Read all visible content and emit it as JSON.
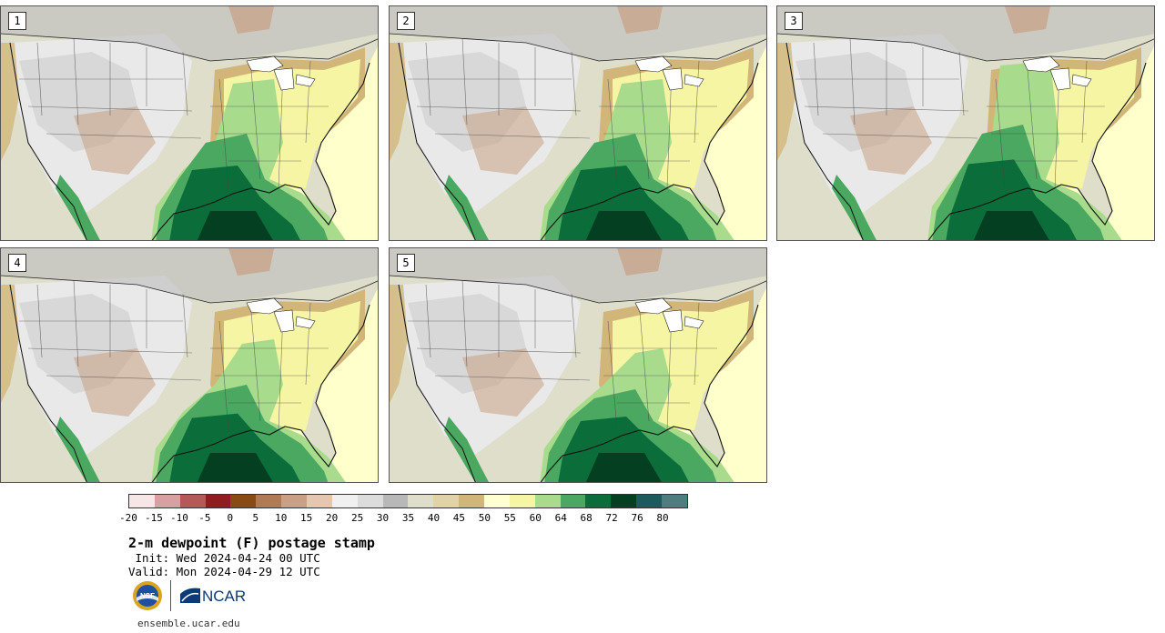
{
  "panels": [
    {
      "label": "1"
    },
    {
      "label": "2"
    },
    {
      "label": "3"
    },
    {
      "label": "4"
    },
    {
      "label": "5"
    }
  ],
  "colorbar": {
    "ticks": [
      "-20",
      "-15",
      "-10",
      "-5",
      "0",
      "5",
      "10",
      "15",
      "20",
      "25",
      "30",
      "35",
      "40",
      "45",
      "50",
      "55",
      "60",
      "64",
      "68",
      "72",
      "76",
      "80"
    ],
    "colors": [
      "#f7e6e6",
      "#d8a1a1",
      "#b55858",
      "#8e1c20",
      "#8a4a14",
      "#b07a52",
      "#c9a083",
      "#e4c6b1",
      "#f0f0f0",
      "#dcdcdc",
      "#b8b8b8",
      "#dedecb",
      "#e0d3a8",
      "#d2b679",
      "#ffffd2",
      "#f5f5a3",
      "#a8dc8c",
      "#4aa860",
      "#0b6e3a",
      "#053f22",
      "#1d5a5e",
      "#4e7d80"
    ]
  },
  "title": "2-m dewpoint (F) postage stamp",
  "init": " Init: Wed 2024-04-24 00 UTC",
  "valid": "Valid: Mon 2024-04-29 12 UTC",
  "logo_text": "NCAR",
  "logo_nsf_text": "NSF",
  "url": "ensemble.ucar.edu"
}
